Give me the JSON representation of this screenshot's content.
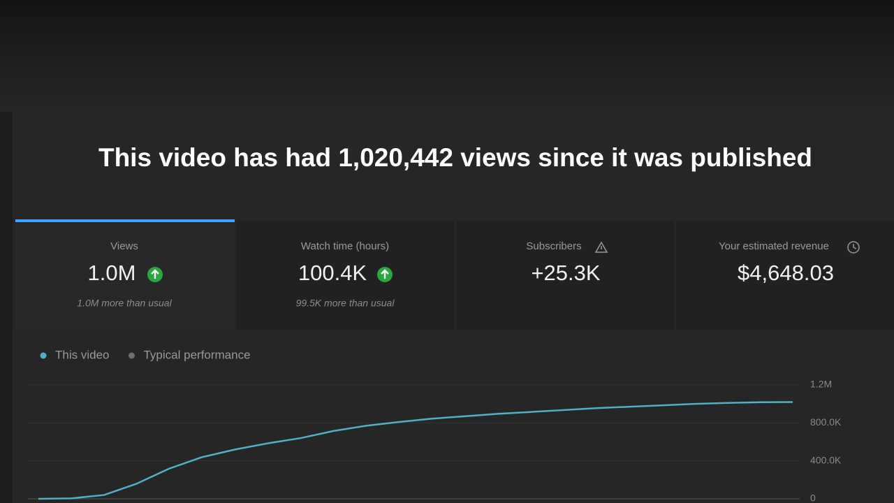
{
  "header": {
    "title": "This video has had 1,020,442 views since it was published"
  },
  "cards": [
    {
      "label": "Views",
      "value": "1.0M",
      "note": "1.0M more than usual"
    },
    {
      "label": "Watch time (hours)",
      "value": "100.4K",
      "note": "99.5K more than usual"
    },
    {
      "label": "Subscribers",
      "value": "+25.3K"
    },
    {
      "label": "Your estimated revenue",
      "value": "$4,648.03"
    }
  ],
  "chart_data": {
    "type": "line",
    "categories": [
      null,
      null,
      null,
      null,
      null,
      null,
      null,
      null,
      null,
      null,
      null,
      null,
      null,
      null,
      null,
      null,
      null,
      null,
      null,
      null,
      null,
      null,
      null,
      null
    ],
    "series": [
      {
        "name": "This video",
        "color": "#4fb0c6",
        "values": [
          0,
          5000,
          40000,
          160000,
          320000,
          440000,
          520000,
          585000,
          640000,
          715000,
          770000,
          810000,
          845000,
          870000,
          895000,
          915000,
          935000,
          955000,
          970000,
          985000,
          1000000,
          1010000,
          1018000,
          1020000
        ]
      },
      {
        "name": "Typical performance",
        "color": "#6e6e6e",
        "values": [
          null,
          null,
          null,
          null,
          null,
          null,
          null,
          null,
          null,
          null,
          null,
          null,
          null,
          null,
          null,
          null,
          null,
          null,
          null,
          null,
          null,
          null,
          null,
          null
        ]
      }
    ],
    "ylim": [
      0,
      1200000
    ],
    "yticks": [
      0,
      {
        "value": 400000,
        "label": "400.0K"
      },
      {
        "value": 800000,
        "label": "800.0K"
      },
      {
        "value": 1200000,
        "label": "1.2M"
      }
    ],
    "grid": true
  }
}
